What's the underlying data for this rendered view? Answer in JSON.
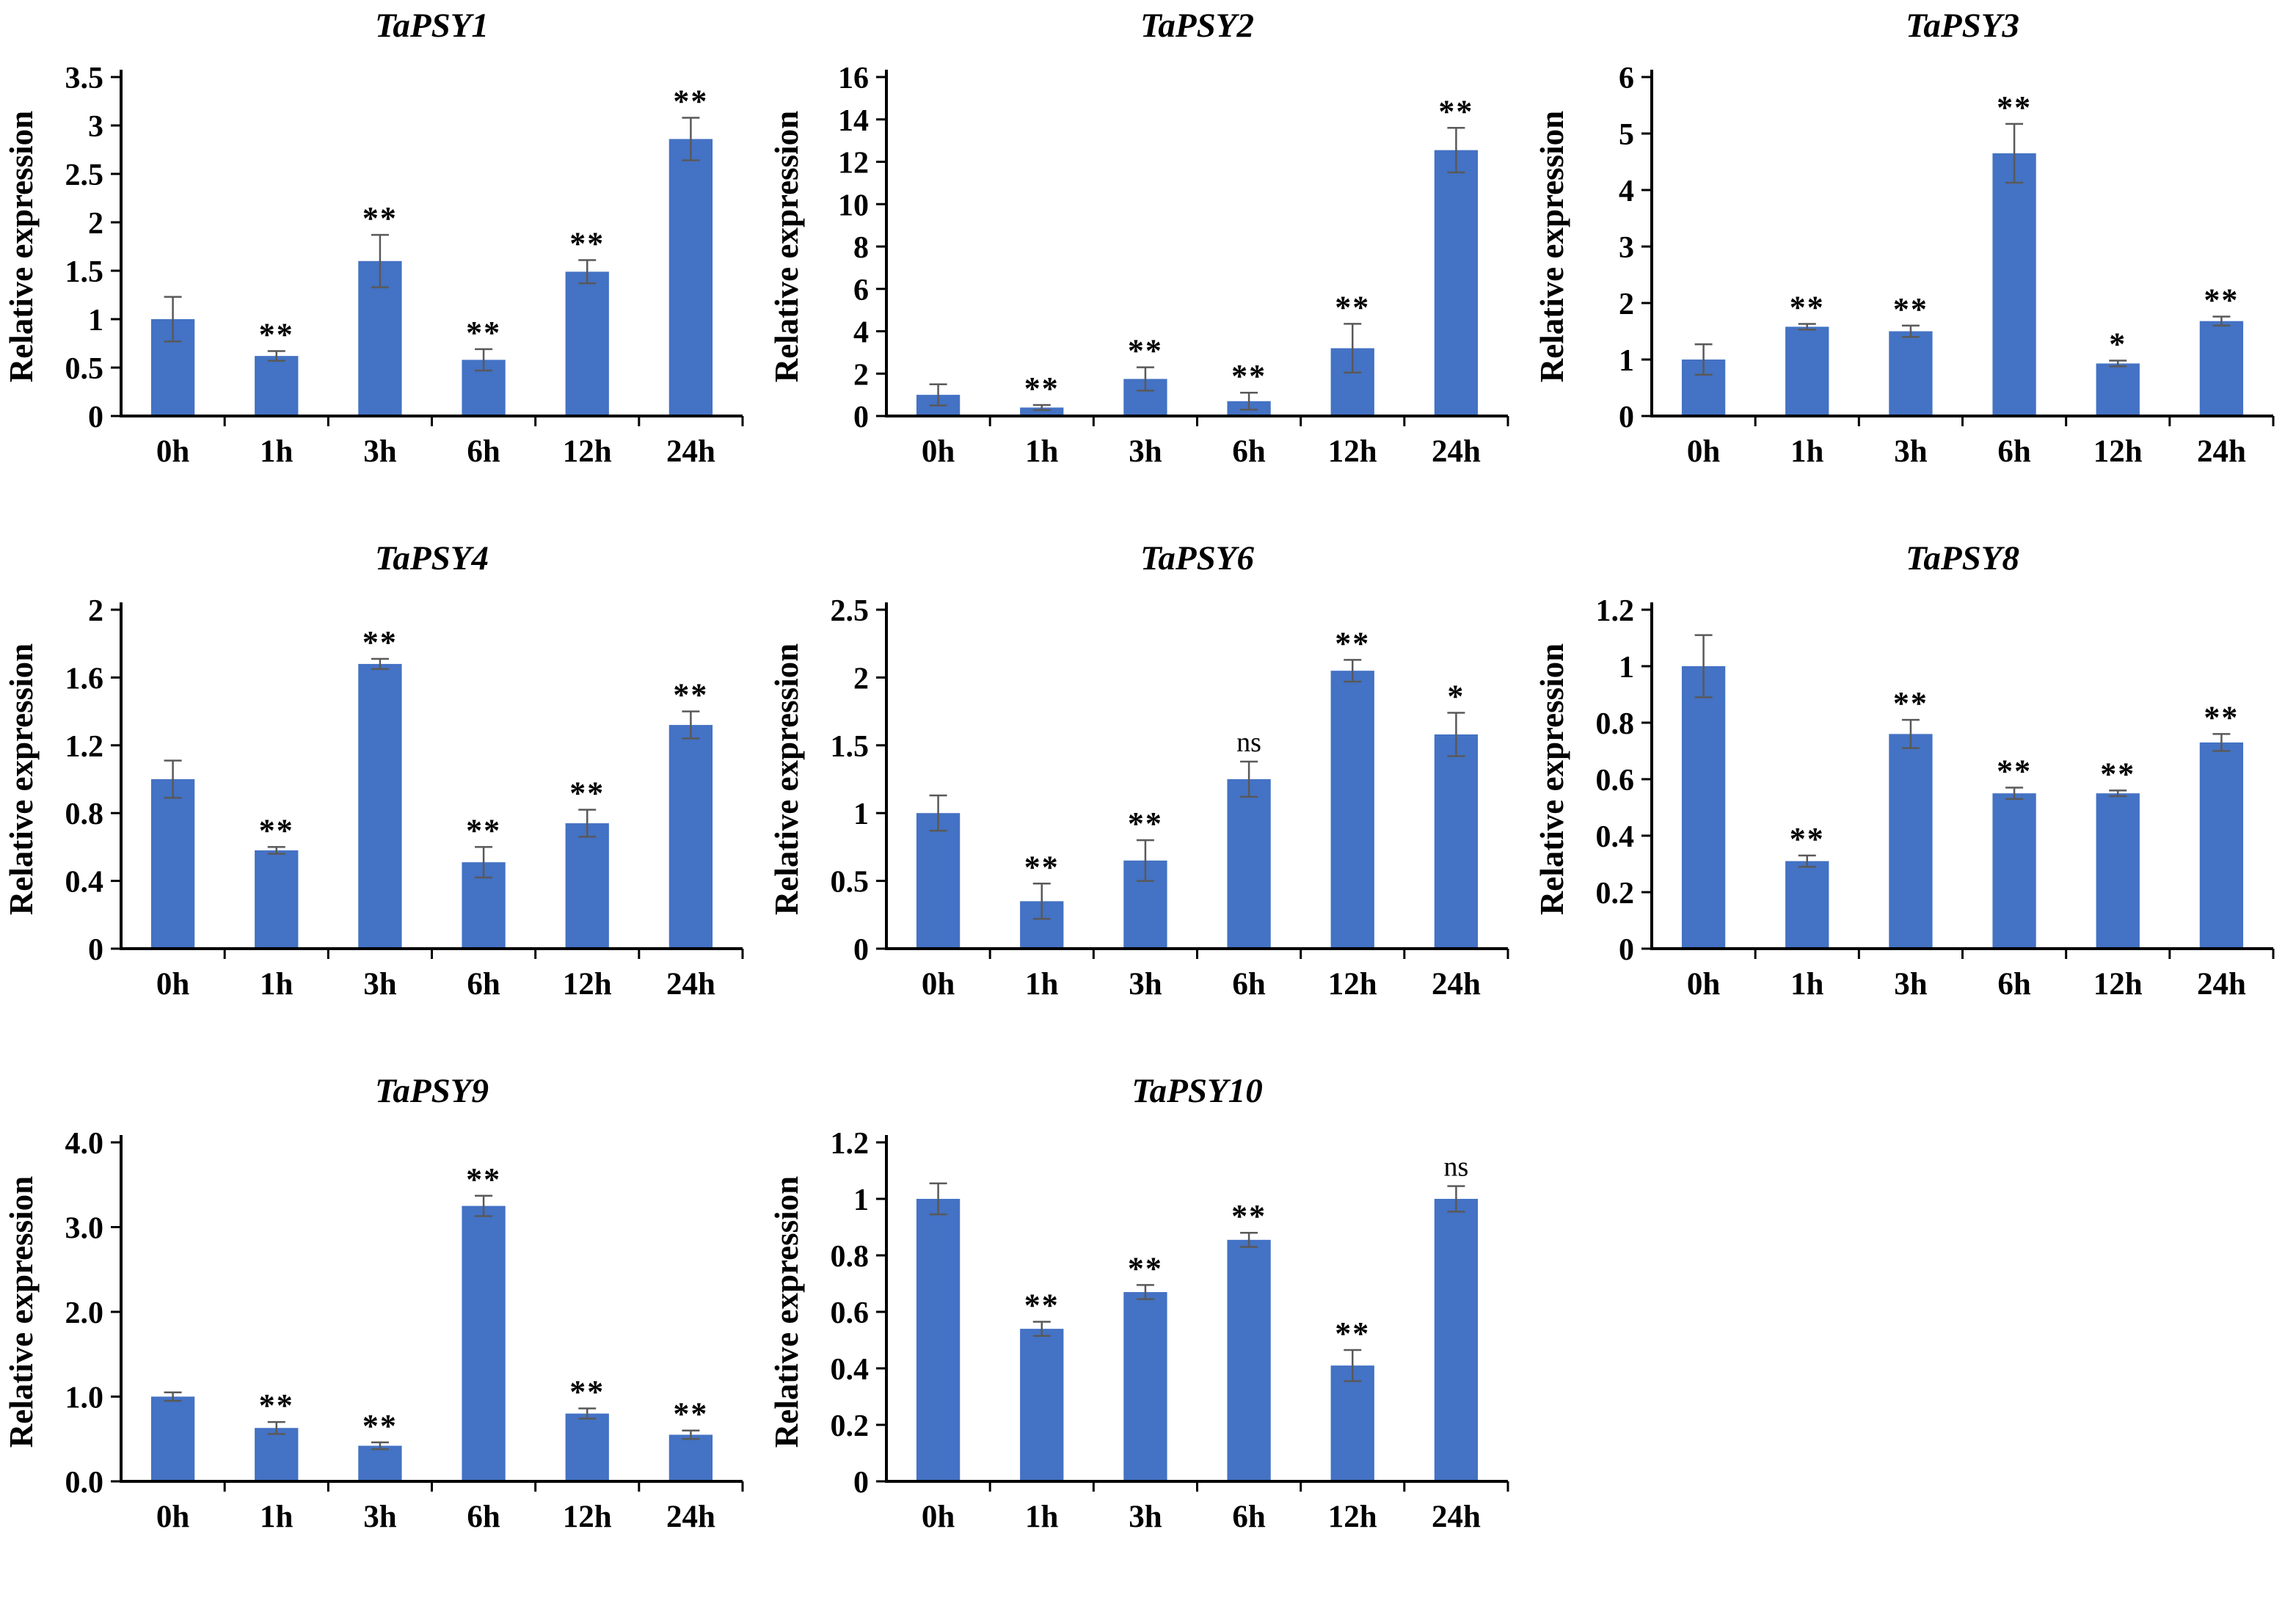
{
  "figure": {
    "description": "Relative expression of TaPSY genes at time points after treatment",
    "background_color": "#ffffff"
  },
  "colors": {
    "bar": "#4472C4",
    "error_bar": "#595959",
    "axis": "#000000",
    "text": "#000000"
  },
  "chart_data": [
    {
      "type": "bar",
      "title": "TaPSY1",
      "ylabel": "Relative expression",
      "xlabel": "",
      "categories": [
        "0h",
        "1h",
        "3h",
        "6h",
        "12h",
        "24h"
      ],
      "values": [
        1.0,
        0.62,
        1.6,
        0.58,
        1.49,
        2.86
      ],
      "errors": [
        0.23,
        0.05,
        0.27,
        0.11,
        0.12,
        0.22
      ],
      "significance": [
        "",
        "**",
        "**",
        "**",
        "**",
        "**"
      ],
      "ylim": [
        0,
        3.5
      ],
      "yticks": [
        "0",
        "0.5",
        "1",
        "1.5",
        "2",
        "2.5",
        "3",
        "3.5"
      ],
      "grid": false,
      "legend": "none"
    },
    {
      "type": "bar",
      "title": "TaPSY2",
      "ylabel": "Relative expression",
      "xlabel": "",
      "categories": [
        "0h",
        "1h",
        "3h",
        "6h",
        "12h",
        "24h"
      ],
      "values": [
        1.0,
        0.4,
        1.75,
        0.7,
        3.2,
        12.55
      ],
      "errors": [
        0.5,
        0.12,
        0.55,
        0.4,
        1.15,
        1.05
      ],
      "significance": [
        "",
        "**",
        "**",
        "**",
        "**",
        "**"
      ],
      "ylim": [
        0,
        16
      ],
      "yticks": [
        "0",
        "2",
        "4",
        "6",
        "8",
        "10",
        "12",
        "14",
        "16"
      ],
      "grid": false,
      "legend": "none"
    },
    {
      "type": "bar",
      "title": "TaPSY3",
      "ylabel": "Relative expression",
      "xlabel": "",
      "categories": [
        "0h",
        "1h",
        "3h",
        "6h",
        "12h",
        "24h"
      ],
      "values": [
        1.0,
        1.58,
        1.5,
        4.65,
        0.93,
        1.68
      ],
      "errors": [
        0.27,
        0.05,
        0.1,
        0.52,
        0.05,
        0.08
      ],
      "significance": [
        "",
        "**",
        "**",
        "**",
        "*",
        "**"
      ],
      "ylim": [
        0,
        6
      ],
      "yticks": [
        "0",
        "1",
        "2",
        "3",
        "4",
        "5",
        "6"
      ],
      "grid": false,
      "legend": "none"
    },
    {
      "type": "bar",
      "title": "TaPSY4",
      "ylabel": "Relative expression",
      "xlabel": "",
      "categories": [
        "0h",
        "1h",
        "3h",
        "6h",
        "12h",
        "24h"
      ],
      "values": [
        1.0,
        0.58,
        1.68,
        0.51,
        0.74,
        1.32
      ],
      "errors": [
        0.11,
        0.02,
        0.03,
        0.09,
        0.08,
        0.08
      ],
      "significance": [
        "",
        "**",
        "**",
        "**",
        "**",
        "**"
      ],
      "ylim": [
        0,
        2
      ],
      "yticks": [
        "0",
        "0.4",
        "0.8",
        "1.2",
        "1.6",
        "2"
      ],
      "grid": false,
      "legend": "none"
    },
    {
      "type": "bar",
      "title": "TaPSY6",
      "ylabel": "Relative expression",
      "xlabel": "",
      "categories": [
        "0h",
        "1h",
        "3h",
        "6h",
        "12h",
        "24h"
      ],
      "values": [
        1.0,
        0.35,
        0.65,
        1.25,
        2.05,
        1.58
      ],
      "errors": [
        0.13,
        0.13,
        0.15,
        0.13,
        0.08,
        0.16
      ],
      "significance": [
        "",
        "**",
        "**",
        "ns",
        "**",
        "*"
      ],
      "ylim": [
        0,
        2.5
      ],
      "yticks": [
        "0",
        "0.5",
        "1",
        "1.5",
        "2",
        "2.5"
      ],
      "grid": false,
      "legend": "none"
    },
    {
      "type": "bar",
      "title": "TaPSY8",
      "ylabel": "Relative expression",
      "xlabel": "",
      "categories": [
        "0h",
        "1h",
        "3h",
        "6h",
        "12h",
        "24h"
      ],
      "values": [
        1.0,
        0.31,
        0.76,
        0.55,
        0.55,
        0.73
      ],
      "errors": [
        0.11,
        0.02,
        0.05,
        0.02,
        0.01,
        0.03
      ],
      "significance": [
        "",
        "**",
        "**",
        "**",
        "**",
        "**"
      ],
      "ylim": [
        0,
        1.2
      ],
      "yticks": [
        "0",
        "0.2",
        "0.4",
        "0.6",
        "0.8",
        "1",
        "1.2"
      ],
      "grid": false,
      "legend": "none"
    },
    {
      "type": "bar",
      "title": "TaPSY9",
      "ylabel": "Relative expression",
      "xlabel": "",
      "categories": [
        "0h",
        "1h",
        "3h",
        "6h",
        "12h",
        "24h"
      ],
      "values": [
        1.0,
        0.63,
        0.42,
        3.25,
        0.8,
        0.55
      ],
      "errors": [
        0.05,
        0.07,
        0.04,
        0.12,
        0.06,
        0.05
      ],
      "significance": [
        "",
        "**",
        "**",
        "**",
        "**",
        "**"
      ],
      "ylim": [
        0,
        4.0
      ],
      "yticks": [
        "0.0",
        "1.0",
        "2.0",
        "3.0",
        "4.0"
      ],
      "grid": false,
      "legend": "none"
    },
    {
      "type": "bar",
      "title": "TaPSY10",
      "ylabel": "Relative expression",
      "xlabel": "",
      "categories": [
        "0h",
        "1h",
        "3h",
        "6h",
        "12h",
        "24h"
      ],
      "values": [
        1.0,
        0.54,
        0.67,
        0.855,
        0.41,
        1.0
      ],
      "errors": [
        0.055,
        0.025,
        0.025,
        0.025,
        0.055,
        0.045
      ],
      "significance": [
        "",
        "**",
        "**",
        "**",
        "**",
        "ns"
      ],
      "ylim": [
        0,
        1.2
      ],
      "yticks": [
        "0",
        "0.2",
        "0.4",
        "0.6",
        "0.8",
        "1",
        "1.2"
      ],
      "grid": false,
      "legend": "none"
    }
  ]
}
